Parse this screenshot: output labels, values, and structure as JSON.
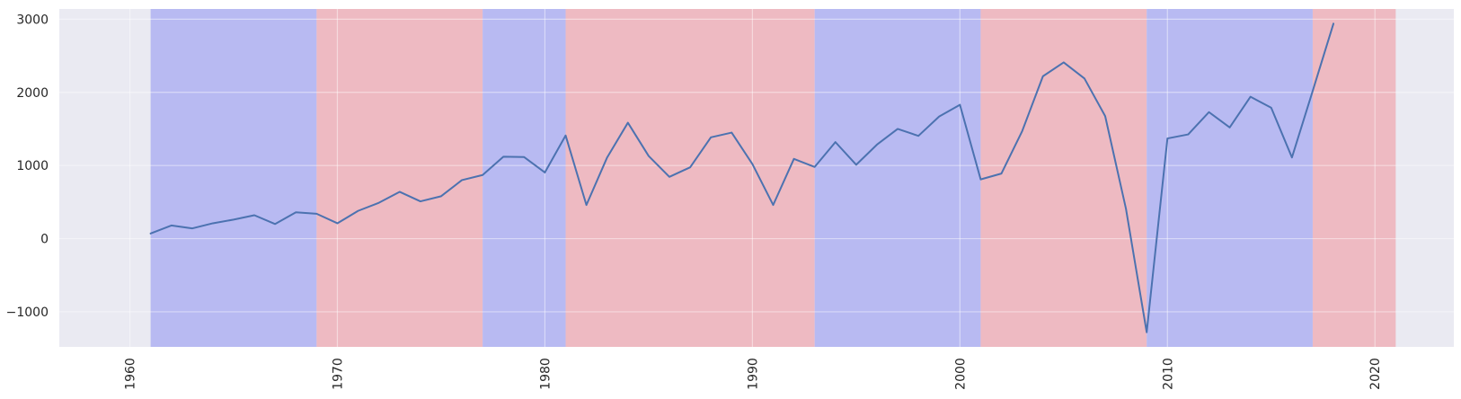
{
  "chart_data": {
    "type": "line",
    "title": "",
    "xlabel": "",
    "ylabel": "",
    "xlim": [
      1956.6,
      2023.8
    ],
    "ylim": [
      -1480,
      3140
    ],
    "x_ticks": [
      1960,
      1970,
      1980,
      1990,
      2000,
      2010,
      2020
    ],
    "y_ticks": [
      -1000,
      0,
      1000,
      2000,
      3000
    ],
    "x_tick_labels": [
      "1960",
      "1970",
      "1980",
      "1990",
      "2000",
      "2010",
      "2020"
    ],
    "y_tick_labels": [
      "−1000",
      "0",
      "1000",
      "2000",
      "3000"
    ],
    "grid": true,
    "colors": {
      "background": "#eaeaf2",
      "grid": "#ffffff",
      "line": "#4c72b0",
      "band_blue": "#b8baf2",
      "band_red": "#eebac2"
    },
    "bands": [
      {
        "start": 1961,
        "end": 1969,
        "color": "blue"
      },
      {
        "start": 1969,
        "end": 1977,
        "color": "red"
      },
      {
        "start": 1977,
        "end": 1981,
        "color": "blue"
      },
      {
        "start": 1981,
        "end": 1993,
        "color": "red"
      },
      {
        "start": 1993,
        "end": 2001,
        "color": "blue"
      },
      {
        "start": 2001,
        "end": 2009,
        "color": "red"
      },
      {
        "start": 2009,
        "end": 2017,
        "color": "blue"
      },
      {
        "start": 2017,
        "end": 2021,
        "color": "red"
      }
    ],
    "series": [
      {
        "x": [
          1961,
          1962,
          1963,
          1964,
          1965,
          1966,
          1967,
          1968,
          1969,
          1970,
          1971,
          1972,
          1973,
          1974,
          1975,
          1976,
          1977,
          1978,
          1979,
          1980,
          1981,
          1982,
          1983,
          1984,
          1985,
          1986,
          1987,
          1988,
          1989,
          1990,
          1991,
          1992,
          1993,
          1994,
          1995,
          1996,
          1997,
          1998,
          1999,
          2000,
          2001,
          2002,
          2003,
          2004,
          2005,
          2006,
          2007,
          2008,
          2009,
          2010,
          2011,
          2012,
          2013,
          2014,
          2015,
          2016,
          2017,
          2018
        ],
        "values": [
          70,
          180,
          140,
          210,
          260,
          320,
          200,
          360,
          340,
          210,
          380,
          490,
          640,
          510,
          580,
          800,
          870,
          1120,
          1115,
          905,
          1410,
          460,
          1110,
          1585,
          1130,
          845,
          975,
          1385,
          1450,
          1020,
          460,
          1090,
          980,
          1320,
          1010,
          1285,
          1500,
          1405,
          1670,
          1830,
          810,
          890,
          1470,
          2220,
          2410,
          2190,
          1675,
          410,
          -1280,
          1370,
          1425,
          1730,
          1520,
          1940,
          1790,
          1110,
          2020,
          2940
        ]
      }
    ]
  }
}
